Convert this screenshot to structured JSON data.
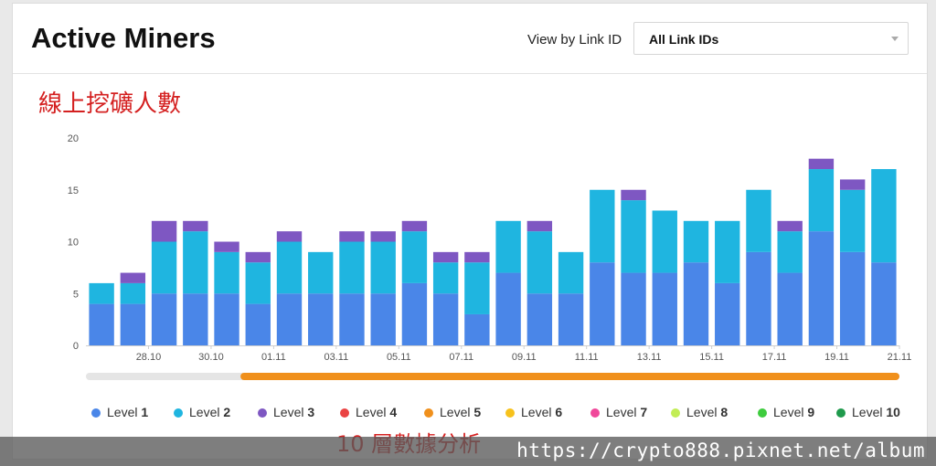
{
  "header": {
    "title": "Active Miners",
    "view_by_label": "View by Link ID",
    "select_value": "All Link IDs"
  },
  "annotations": {
    "top": "線上挖礦人數",
    "bottom": "10 層數據分析"
  },
  "watermark": "https://crypto888.pixnet.net/album",
  "colors": {
    "level1": "#4a86e8",
    "level2": "#1fb5e0",
    "level3": "#7e57c2",
    "level4": "#ea4343",
    "level5": "#f0901c",
    "level6": "#f7c21c",
    "level7": "#f0479a",
    "level8": "#c2ed55",
    "level9": "#3ecc3e",
    "level10": "#1f9a4c",
    "slider_track": "#e5e5e5",
    "slider_range": "#f0901c"
  },
  "legend": [
    {
      "prefix": "Level",
      "num": "1",
      "color": "#4a86e8"
    },
    {
      "prefix": "Level",
      "num": "2",
      "color": "#1fb5e0"
    },
    {
      "prefix": "Level",
      "num": "3",
      "color": "#7e57c2"
    },
    {
      "prefix": "Level",
      "num": "4",
      "color": "#ea4343"
    },
    {
      "prefix": "Level",
      "num": "5",
      "color": "#f0901c"
    },
    {
      "prefix": "Level",
      "num": "6",
      "color": "#f7c21c"
    },
    {
      "prefix": "Level",
      "num": "7",
      "color": "#f0479a"
    },
    {
      "prefix": "Level",
      "num": "8",
      "color": "#c2ed55"
    },
    {
      "prefix": "Level",
      "num": "9",
      "color": "#3ecc3e"
    },
    {
      "prefix": "Level",
      "num": "10",
      "color": "#1f9a4c"
    }
  ],
  "chart_data": {
    "type": "bar",
    "stacked": true,
    "x_ticks": [
      "28.10",
      "30.10",
      "01.11",
      "03.11",
      "05.11",
      "07.11",
      "09.11",
      "11.11",
      "13.11",
      "15.11",
      "17.11",
      "19.11",
      "21.11"
    ],
    "y_ticks": [
      "0",
      "5",
      "10",
      "15",
      "20"
    ],
    "ylim": [
      0,
      20
    ],
    "categories": [
      "27.10",
      "28.10",
      "29.10",
      "30.10",
      "31.10",
      "01.11",
      "02.11",
      "03.11",
      "04.11",
      "05.11",
      "06.11",
      "07.11",
      "08.11",
      "09.11",
      "10.11",
      "11.11",
      "12.11",
      "13.11",
      "14.11",
      "15.11",
      "16.11",
      "17.11",
      "18.11",
      "19.11",
      "20.11",
      "21.11"
    ],
    "series": [
      {
        "name": "Level 1",
        "values": [
          4,
          4,
          5,
          5,
          5,
          4,
          5,
          5,
          5,
          5,
          6,
          5,
          3,
          7,
          5,
          5,
          8,
          7,
          7,
          8,
          6,
          9,
          7,
          11,
          9,
          8
        ]
      },
      {
        "name": "Level 2",
        "values": [
          2,
          2,
          5,
          6,
          4,
          4,
          5,
          4,
          5,
          5,
          5,
          3,
          5,
          5,
          6,
          4,
          7,
          7,
          6,
          4,
          6,
          6,
          4,
          6,
          6,
          9
        ]
      },
      {
        "name": "Level 3",
        "values": [
          0,
          1,
          2,
          1,
          1,
          1,
          1,
          0,
          1,
          1,
          1,
          1,
          1,
          0,
          1,
          0,
          0,
          1,
          0,
          0,
          0,
          0,
          1,
          1,
          1,
          0
        ]
      }
    ],
    "range_selector": {
      "start_fraction": 0.19,
      "end_fraction": 1.0
    },
    "grid": false,
    "legend_position": "bottom"
  }
}
